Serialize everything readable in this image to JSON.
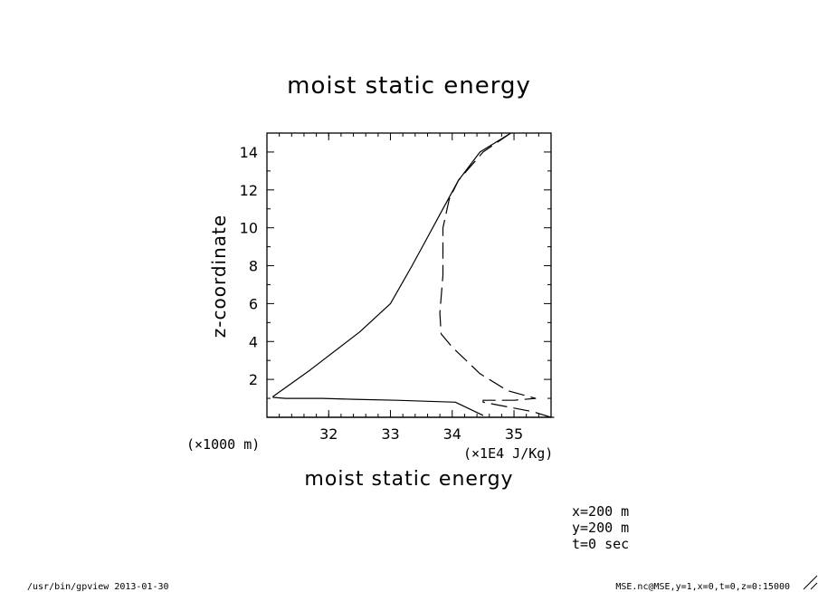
{
  "chart_data": {
    "type": "line",
    "title": "moist static energy",
    "xlabel": "moist static energy",
    "ylabel": "z-coordinate",
    "x_unit": "(×1E4 J/Kg)",
    "y_unit": "(×1000 m)",
    "xlim": [
      31.0,
      35.6
    ],
    "ylim": [
      0,
      15
    ],
    "x_ticks": [
      "32",
      "33",
      "34",
      "35"
    ],
    "y_ticks": [
      "2",
      "4",
      "6",
      "8",
      "10",
      "12",
      "14"
    ],
    "series": [
      {
        "style": "solid",
        "x": [
          34.5,
          34.05,
          33.1,
          32.4,
          31.9,
          31.3,
          31.1,
          31.1,
          31.7,
          32.5,
          33.0,
          33.35,
          33.6,
          33.85,
          34.1,
          34.45,
          34.95
        ],
        "y": [
          0.1,
          0.8,
          0.9,
          0.95,
          1.0,
          1.0,
          1.05,
          1.1,
          2.5,
          4.5,
          6.0,
          8.0,
          9.5,
          11.0,
          12.5,
          14.0,
          15.0
        ]
      },
      {
        "style": "dashed",
        "x": [
          35.6,
          35.3,
          34.5,
          34.5,
          35.0,
          35.35,
          34.9,
          34.45,
          34.0,
          33.82,
          33.8,
          33.85,
          33.85,
          33.95,
          34.1,
          34.5,
          34.95
        ],
        "y": [
          0.0,
          0.3,
          0.8,
          0.9,
          0.9,
          1.0,
          1.4,
          2.3,
          3.7,
          4.4,
          5.5,
          7.5,
          10.0,
          11.5,
          12.5,
          14.0,
          15.0
        ]
      }
    ]
  },
  "annotations": [
    "x=200 m",
    "y=200 m",
    "t=0 sec"
  ],
  "footer": {
    "left": "/usr/bin/gpview  2013-01-30",
    "right": "MSE.nc@MSE,y=1,x=0,t=0,z=0:15000"
  }
}
